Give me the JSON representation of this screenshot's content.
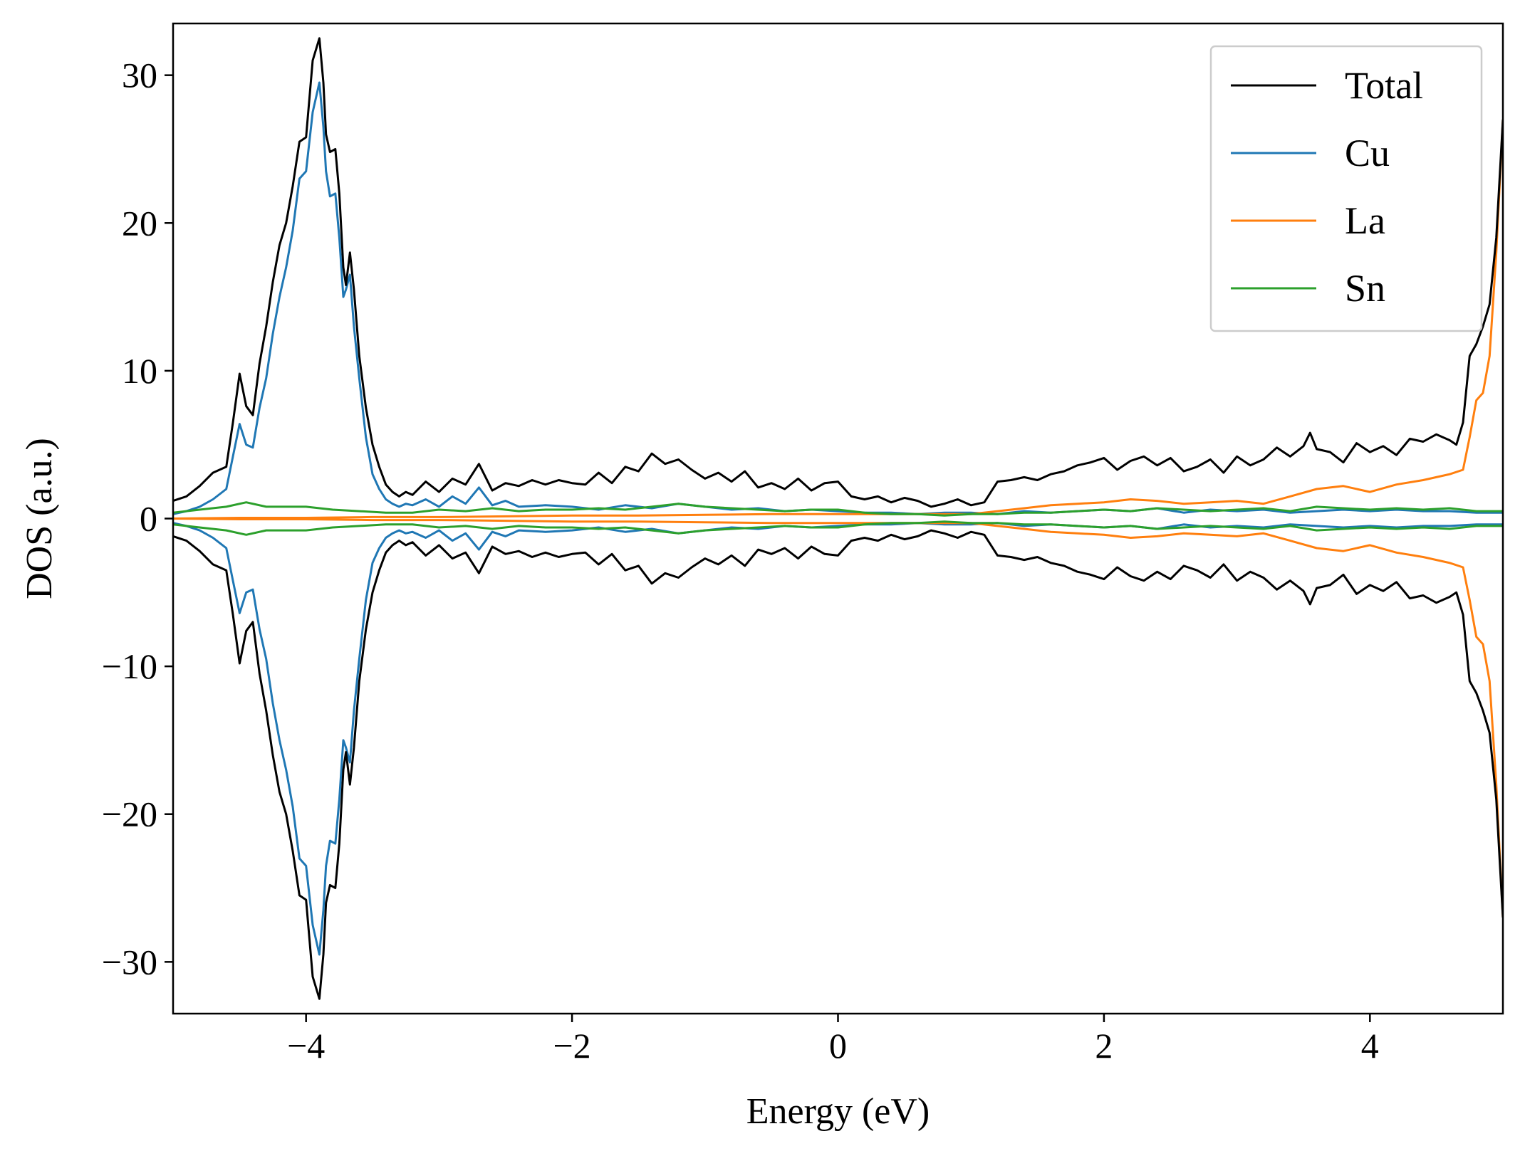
{
  "chart_data": {
    "type": "line",
    "title": "",
    "xlabel": "Energy (eV)",
    "ylabel": "DOS (a.u.)",
    "xlim": [
      -5,
      5
    ],
    "ylim": [
      -33.5,
      33.5
    ],
    "x_ticks": [
      -4,
      -2,
      0,
      2,
      4
    ],
    "x_tick_labels": [
      "−4",
      "−2",
      "0",
      "2",
      "4"
    ],
    "y_ticks": [
      -30,
      -20,
      -10,
      0,
      10,
      20,
      30
    ],
    "y_tick_labels": [
      "−30",
      "−20",
      "−10",
      "0",
      "10",
      "20",
      "30"
    ],
    "grid": false,
    "legend_position": "top-right",
    "mirrored_spin_down": true,
    "series": [
      {
        "name": "Total",
        "color": "#000000",
        "x": [
          -5.0,
          -4.9,
          -4.8,
          -4.7,
          -4.6,
          -4.55,
          -4.5,
          -4.45,
          -4.4,
          -4.35,
          -4.3,
          -4.25,
          -4.2,
          -4.15,
          -4.1,
          -4.05,
          -4.0,
          -3.95,
          -3.9,
          -3.87,
          -3.85,
          -3.82,
          -3.78,
          -3.75,
          -3.72,
          -3.7,
          -3.67,
          -3.64,
          -3.6,
          -3.55,
          -3.5,
          -3.45,
          -3.4,
          -3.35,
          -3.3,
          -3.25,
          -3.2,
          -3.1,
          -3.0,
          -2.9,
          -2.8,
          -2.7,
          -2.6,
          -2.5,
          -2.4,
          -2.3,
          -2.2,
          -2.1,
          -2.0,
          -1.9,
          -1.8,
          -1.7,
          -1.6,
          -1.5,
          -1.4,
          -1.3,
          -1.2,
          -1.1,
          -1.0,
          -0.9,
          -0.8,
          -0.7,
          -0.6,
          -0.5,
          -0.4,
          -0.3,
          -0.2,
          -0.1,
          0.0,
          0.1,
          0.2,
          0.3,
          0.4,
          0.5,
          0.6,
          0.7,
          0.8,
          0.9,
          1.0,
          1.1,
          1.2,
          1.3,
          1.4,
          1.5,
          1.6,
          1.7,
          1.8,
          1.9,
          2.0,
          2.1,
          2.2,
          2.3,
          2.4,
          2.5,
          2.6,
          2.7,
          2.8,
          2.9,
          3.0,
          3.1,
          3.2,
          3.3,
          3.4,
          3.5,
          3.55,
          3.6,
          3.7,
          3.8,
          3.9,
          4.0,
          4.1,
          4.2,
          4.3,
          4.4,
          4.5,
          4.6,
          4.65,
          4.7,
          4.75,
          4.8,
          4.85,
          4.9,
          4.95,
          5.0
        ],
        "y": [
          1.2,
          1.5,
          2.2,
          3.1,
          3.5,
          6.5,
          9.8,
          7.6,
          7.0,
          10.5,
          13.0,
          16.0,
          18.5,
          20.0,
          22.5,
          25.5,
          25.8,
          31.0,
          32.5,
          29.5,
          26.0,
          24.8,
          25.0,
          22.0,
          17.0,
          15.8,
          18.0,
          15.5,
          11.0,
          7.5,
          5.0,
          3.5,
          2.3,
          1.8,
          1.5,
          1.8,
          1.6,
          2.5,
          1.8,
          2.7,
          2.3,
          3.7,
          1.9,
          2.4,
          2.2,
          2.6,
          2.3,
          2.6,
          2.4,
          2.3,
          3.1,
          2.4,
          3.5,
          3.2,
          4.4,
          3.7,
          4.0,
          3.3,
          2.7,
          3.1,
          2.5,
          3.2,
          2.1,
          2.4,
          2.0,
          2.7,
          1.9,
          2.4,
          2.5,
          1.5,
          1.3,
          1.5,
          1.1,
          1.4,
          1.2,
          0.8,
          1.0,
          1.3,
          0.9,
          1.1,
          2.5,
          2.6,
          2.8,
          2.6,
          3.0,
          3.2,
          3.6,
          3.8,
          4.1,
          3.3,
          3.9,
          4.2,
          3.6,
          4.1,
          3.2,
          3.5,
          4.0,
          3.1,
          4.2,
          3.6,
          4.0,
          4.8,
          4.2,
          4.9,
          5.8,
          4.7,
          4.5,
          3.8,
          5.1,
          4.5,
          4.9,
          4.3,
          5.4,
          5.2,
          5.7,
          5.3,
          5.0,
          6.5,
          11.0,
          11.8,
          13.0,
          14.5,
          19.0,
          27.0
        ]
      },
      {
        "name": "Cu",
        "color": "#1f77b4",
        "x": [
          -5.0,
          -4.9,
          -4.8,
          -4.7,
          -4.6,
          -4.55,
          -4.5,
          -4.45,
          -4.4,
          -4.35,
          -4.3,
          -4.25,
          -4.2,
          -4.15,
          -4.1,
          -4.05,
          -4.0,
          -3.95,
          -3.9,
          -3.87,
          -3.85,
          -3.82,
          -3.78,
          -3.75,
          -3.72,
          -3.7,
          -3.67,
          -3.64,
          -3.6,
          -3.55,
          -3.5,
          -3.45,
          -3.4,
          -3.35,
          -3.3,
          -3.25,
          -3.2,
          -3.1,
          -3.0,
          -2.9,
          -2.8,
          -2.7,
          -2.6,
          -2.5,
          -2.4,
          -2.2,
          -2.0,
          -1.8,
          -1.6,
          -1.4,
          -1.2,
          -1.0,
          -0.8,
          -0.6,
          -0.4,
          -0.2,
          0.0,
          0.2,
          0.4,
          0.6,
          0.8,
          1.0,
          1.2,
          1.4,
          1.6,
          1.8,
          2.0,
          2.2,
          2.4,
          2.6,
          2.8,
          3.0,
          3.2,
          3.4,
          3.6,
          3.8,
          4.0,
          4.2,
          4.4,
          4.6,
          4.8,
          5.0
        ],
        "y": [
          0.3,
          0.5,
          0.8,
          1.3,
          2.0,
          4.2,
          6.4,
          5.0,
          4.8,
          7.5,
          9.5,
          12.5,
          15.0,
          17.0,
          19.5,
          23.0,
          23.5,
          27.5,
          29.5,
          26.5,
          23.5,
          21.8,
          22.0,
          19.0,
          15.0,
          15.5,
          16.5,
          13.0,
          9.5,
          5.5,
          3.0,
          2.0,
          1.3,
          1.0,
          0.8,
          1.0,
          0.9,
          1.3,
          0.8,
          1.5,
          1.0,
          2.1,
          0.9,
          1.2,
          0.8,
          0.9,
          0.8,
          0.6,
          0.9,
          0.7,
          1.0,
          0.8,
          0.6,
          0.7,
          0.5,
          0.6,
          0.5,
          0.4,
          0.4,
          0.3,
          0.4,
          0.4,
          0.3,
          0.5,
          0.4,
          0.5,
          0.6,
          0.5,
          0.7,
          0.4,
          0.6,
          0.5,
          0.6,
          0.4,
          0.5,
          0.6,
          0.5,
          0.6,
          0.5,
          0.5,
          0.4,
          0.4
        ]
      },
      {
        "name": "La",
        "color": "#ff7f0e",
        "x": [
          -5.0,
          -4.5,
          -4.0,
          -3.5,
          -3.0,
          -2.5,
          -2.0,
          -1.5,
          -1.0,
          -0.5,
          0.0,
          0.5,
          1.0,
          1.2,
          1.4,
          1.6,
          1.8,
          2.0,
          2.2,
          2.4,
          2.6,
          2.8,
          3.0,
          3.2,
          3.4,
          3.6,
          3.8,
          4.0,
          4.2,
          4.4,
          4.6,
          4.7,
          4.75,
          4.8,
          4.85,
          4.9,
          4.95,
          5.0
        ],
        "y": [
          0.0,
          0.05,
          0.05,
          0.1,
          0.1,
          0.15,
          0.2,
          0.2,
          0.25,
          0.3,
          0.3,
          0.3,
          0.3,
          0.5,
          0.7,
          0.9,
          1.0,
          1.1,
          1.3,
          1.2,
          1.0,
          1.1,
          1.2,
          1.0,
          1.5,
          2.0,
          2.2,
          1.8,
          2.3,
          2.6,
          3.0,
          3.3,
          5.5,
          8.0,
          8.5,
          11.0,
          18.0,
          27.0
        ]
      },
      {
        "name": "Sn",
        "color": "#2ca02c",
        "x": [
          -5.0,
          -4.8,
          -4.6,
          -4.45,
          -4.3,
          -4.0,
          -3.8,
          -3.6,
          -3.4,
          -3.2,
          -3.0,
          -2.8,
          -2.6,
          -2.4,
          -2.2,
          -2.0,
          -1.8,
          -1.6,
          -1.4,
          -1.2,
          -1.0,
          -0.8,
          -0.6,
          -0.4,
          -0.2,
          0.0,
          0.2,
          0.4,
          0.6,
          0.8,
          1.0,
          1.2,
          1.4,
          1.6,
          1.8,
          2.0,
          2.2,
          2.4,
          2.6,
          2.8,
          3.0,
          3.2,
          3.4,
          3.6,
          3.8,
          4.0,
          4.2,
          4.4,
          4.6,
          4.8,
          5.0
        ],
        "y": [
          0.4,
          0.6,
          0.8,
          1.1,
          0.8,
          0.8,
          0.6,
          0.5,
          0.4,
          0.4,
          0.6,
          0.5,
          0.7,
          0.5,
          0.6,
          0.6,
          0.7,
          0.6,
          0.8,
          1.0,
          0.8,
          0.7,
          0.6,
          0.5,
          0.6,
          0.6,
          0.4,
          0.3,
          0.3,
          0.2,
          0.3,
          0.3,
          0.4,
          0.4,
          0.5,
          0.6,
          0.5,
          0.7,
          0.6,
          0.5,
          0.6,
          0.7,
          0.5,
          0.8,
          0.7,
          0.6,
          0.7,
          0.6,
          0.7,
          0.5,
          0.5
        ]
      }
    ]
  }
}
